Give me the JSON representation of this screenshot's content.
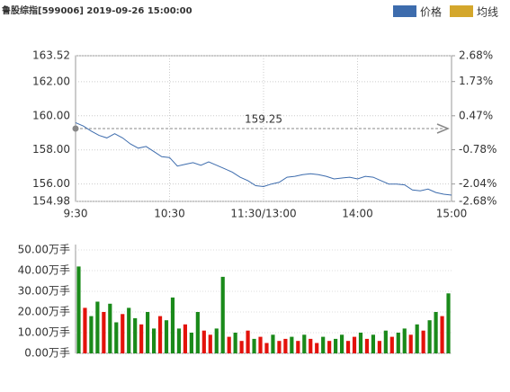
{
  "chart_data": [
    {
      "type": "line",
      "title": "鲁股综指[599006] 2019-09-26 15:00:00",
      "legend": [
        {
          "name": "价格",
          "color": "#3d6cad"
        },
        {
          "name": "均线",
          "color": "#d4a72c"
        }
      ],
      "reference_value": 159.25,
      "up_color": "#e3120b",
      "down_color": "#1a8a1a",
      "x": [
        0,
        5,
        10,
        15,
        20,
        25,
        30,
        35,
        40,
        45,
        50,
        55,
        60,
        65,
        70,
        75,
        80,
        85,
        90,
        95,
        100,
        105,
        110,
        115,
        120,
        125,
        130,
        135,
        140,
        145,
        150,
        155,
        160,
        165,
        170,
        175,
        180,
        185,
        190,
        195,
        200,
        205,
        210,
        215,
        220,
        225,
        230,
        235,
        240
      ],
      "series": [
        {
          "name": "价格",
          "color": "#3d6cad",
          "values": [
            159.6,
            159.4,
            159.1,
            158.85,
            158.7,
            158.95,
            158.7,
            158.35,
            158.1,
            158.2,
            157.9,
            157.6,
            157.55,
            157.05,
            157.15,
            157.25,
            157.1,
            157.3,
            157.1,
            156.9,
            156.7,
            156.4,
            156.2,
            155.9,
            155.85,
            156.0,
            156.1,
            156.4,
            156.45,
            156.55,
            156.6,
            156.55,
            156.45,
            156.3,
            156.35,
            156.4,
            156.3,
            156.45,
            156.4,
            156.2,
            156.0,
            156.0,
            155.95,
            155.65,
            155.6,
            155.7,
            155.5,
            155.4,
            155.35
          ]
        }
      ],
      "xlim": [
        0,
        240
      ],
      "xticks": [
        {
          "value": 0,
          "label": "9:30"
        },
        {
          "value": 60,
          "label": "10:30"
        },
        {
          "value": 120,
          "label": "11:30/13:00"
        },
        {
          "value": 180,
          "label": "14:00"
        },
        {
          "value": 240,
          "label": "15:00"
        }
      ],
      "ylim": [
        154.98,
        163.52
      ],
      "yticks": [
        163.52,
        {
          "value": 162,
          "label": "162.00"
        },
        {
          "value": 160,
          "label": "160.00"
        },
        {
          "value": 158,
          "label": "158.00"
        },
        {
          "value": 156,
          "label": "156.00"
        },
        154.98
      ],
      "y2lim": [
        -2.68,
        2.68
      ],
      "y2ticks": [
        {
          "value": 2.68,
          "label": "2.68%"
        },
        {
          "value": 1.73,
          "label": "1.73%"
        },
        {
          "value": 0.47,
          "label": "0.47%"
        },
        {
          "value": -0.78,
          "label": "-0.78%"
        },
        {
          "value": -2.04,
          "label": "-2.04%"
        },
        {
          "value": -2.68,
          "label": "-2.68%"
        }
      ],
      "grid": true
    },
    {
      "type": "bar",
      "values": [
        42,
        22,
        18,
        25,
        20,
        24,
        15,
        19,
        22,
        17,
        14,
        20,
        12,
        18,
        16,
        27,
        12,
        14,
        10,
        20,
        11,
        9,
        12,
        37,
        8,
        10,
        6,
        11,
        7,
        8,
        5,
        9,
        6,
        7,
        8,
        6,
        9,
        7,
        5,
        8,
        6,
        7,
        9,
        6,
        8,
        10,
        7,
        9,
        6,
        11,
        8,
        10,
        12,
        9,
        14,
        11,
        16,
        20,
        18,
        29
      ],
      "up": [
        false,
        true,
        false,
        false,
        true,
        false,
        false,
        true,
        false,
        false,
        true,
        false,
        false,
        true,
        false,
        false,
        false,
        true,
        false,
        false,
        true,
        true,
        false,
        false,
        true,
        false,
        true,
        true,
        false,
        true,
        true,
        false,
        true,
        true,
        false,
        true,
        false,
        true,
        true,
        false,
        true,
        false,
        false,
        true,
        true,
        false,
        true,
        false,
        true,
        false,
        true,
        false,
        false,
        true,
        false,
        true,
        false,
        false,
        true,
        false
      ],
      "up_color": "#e3120b",
      "down_color": "#1a8a1a",
      "ylim": [
        0,
        50
      ],
      "yticks": [
        {
          "value": 50,
          "label": "50.00万手"
        },
        {
          "value": 40,
          "label": "40.00万手"
        },
        {
          "value": 30,
          "label": "30.00万手"
        },
        {
          "value": 20,
          "label": "20.00万手"
        },
        {
          "value": 10,
          "label": "10.00万手"
        },
        {
          "value": 0,
          "label": "0.00万手"
        }
      ],
      "grid": true
    }
  ]
}
